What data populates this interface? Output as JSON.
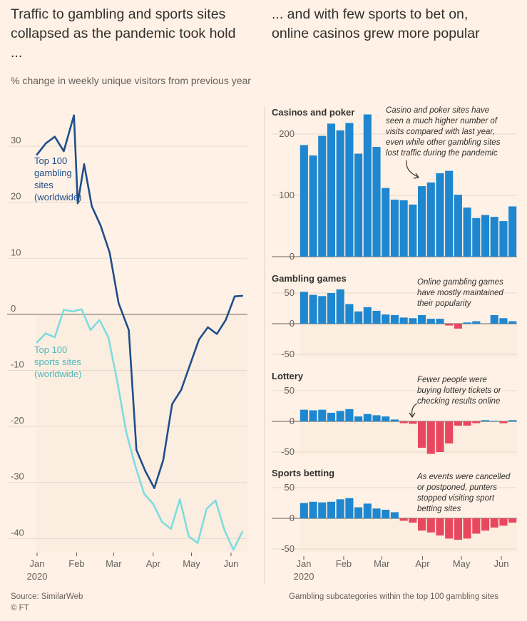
{
  "titles": {
    "left": "Traffic to gambling and sports sites collapsed as the pandemic took hold ...",
    "right": "... and with few sports to bet on, online casinos grew more popular"
  },
  "subtitle": "% change in weekly unique visitors from previous year",
  "colors": {
    "gambling_line": "#1f4e8c",
    "sports_line": "#7fdbe0",
    "positive_bar": "#1e87d0",
    "negative_bar": "#e8485f",
    "shade": "#fbeee0"
  },
  "chart_data": [
    {
      "type": "line",
      "title": "% change in weekly unique visitors from previous year",
      "x_ticks": [
        "Jan",
        "Feb",
        "Mar",
        "Apr",
        "May",
        "Jun"
      ],
      "x_year": "2020",
      "y_ticks": [
        "30",
        "20",
        "10",
        "0",
        "-10",
        "-20",
        "-30",
        "-40"
      ],
      "ylim": [
        -42.5,
        37
      ],
      "series": [
        {
          "name": "Top 100 gambling sites (worldwide)",
          "label_lines": [
            "Top 100",
            "gambling",
            "sites",
            "(worldwide)"
          ],
          "x": [
            1,
            8,
            15,
            22,
            30,
            33,
            38,
            44,
            51,
            58,
            65,
            73,
            79,
            86,
            93,
            100,
            107,
            114,
            121,
            128,
            135,
            142,
            149,
            156,
            162
          ],
          "values": [
            28.5,
            30.5,
            31.7,
            29.1,
            35.5,
            19.8,
            26.8,
            19.3,
            15.8,
            11.0,
            2.0,
            -2.8,
            -24.2,
            -28.0,
            -31.0,
            -26.0,
            -16.0,
            -13.5,
            -9.0,
            -4.5,
            -2.3,
            -3.5,
            -1.0,
            3.2,
            3.3
          ]
        },
        {
          "name": "Top 100 sports sites (worldwide)",
          "label_lines": [
            "Top 100",
            "sports sites",
            "(worldwide)"
          ],
          "x": [
            1,
            8,
            15,
            22,
            29,
            36,
            43,
            50,
            57,
            64,
            71,
            78,
            85,
            92,
            99,
            106,
            113,
            120,
            127,
            134,
            141,
            148,
            155,
            162
          ],
          "values": [
            -5.0,
            -3.4,
            -4.1,
            0.8,
            0.5,
            0.9,
            -2.8,
            -1.0,
            -4.1,
            -12.0,
            -21.0,
            -27.0,
            -32.0,
            -33.8,
            -37.0,
            -38.3,
            -33.0,
            -39.6,
            -40.8,
            -34.7,
            -33.2,
            -38.5,
            -42.0,
            -38.8
          ]
        }
      ]
    },
    {
      "type": "bar",
      "title": "Casinos and poker",
      "annotation": [
        "Casino and poker sites have",
        "seen a much higher number of",
        "visits compared with last year,",
        "even while other gambling sites",
        "lost traffic during the pandemic"
      ],
      "y_ticks": [
        "200",
        "100",
        "0"
      ],
      "ylim": [
        0,
        240
      ],
      "values": [
        182,
        165,
        197,
        217,
        206,
        218,
        168,
        232,
        179,
        112,
        93,
        92,
        85,
        115,
        121,
        136,
        140,
        101,
        80,
        63,
        68,
        65,
        58,
        82
      ]
    },
    {
      "type": "bar",
      "title": "Gambling games",
      "annotation": [
        "Online gambling games",
        "have mostly maintained",
        "their popularity"
      ],
      "y_ticks": [
        "50",
        "0",
        "-50"
      ],
      "ylim": [
        -55,
        55
      ],
      "values": [
        52,
        47,
        45,
        50,
        56,
        32,
        20,
        27,
        21,
        15,
        14,
        10,
        9,
        14,
        8,
        8,
        -3,
        -8,
        2,
        4,
        0,
        14,
        9,
        4
      ]
    },
    {
      "type": "bar",
      "title": "Lottery",
      "annotation": [
        "Fewer people were",
        "buying lottery tickets or",
        "checking results online"
      ],
      "y_ticks": [
        "50",
        "0",
        "-50"
      ],
      "ylim": [
        -55,
        55
      ],
      "values": [
        19,
        18,
        19,
        14,
        17,
        20,
        8,
        12,
        10,
        8,
        3,
        -3,
        -4,
        -43,
        -53,
        -50,
        -36,
        -7,
        -7,
        -3,
        2,
        1,
        -3,
        2
      ]
    },
    {
      "type": "bar",
      "title": "Sports betting",
      "annotation": [
        "As events were cancelled",
        "or postponed, punters",
        "stopped visiting sport",
        "betting sites"
      ],
      "y_ticks": [
        "50",
        "0",
        "-50"
      ],
      "ylim": [
        -55,
        55
      ],
      "x_ticks": [
        "Jan",
        "Feb",
        "Mar",
        "Apr",
        "May",
        "Jun"
      ],
      "x_year": "2020",
      "values": [
        25,
        27,
        26,
        27,
        31,
        33,
        18,
        24,
        16,
        14,
        10,
        -4,
        -7,
        -20,
        -23,
        -28,
        -33,
        -35,
        -33,
        -25,
        -20,
        -15,
        -12,
        -7
      ]
    }
  ],
  "footer": {
    "source": "Source: SimilarWeb",
    "copyright": "© FT",
    "right_note": "Gambling subcategories within the top 100 gambling sites"
  }
}
